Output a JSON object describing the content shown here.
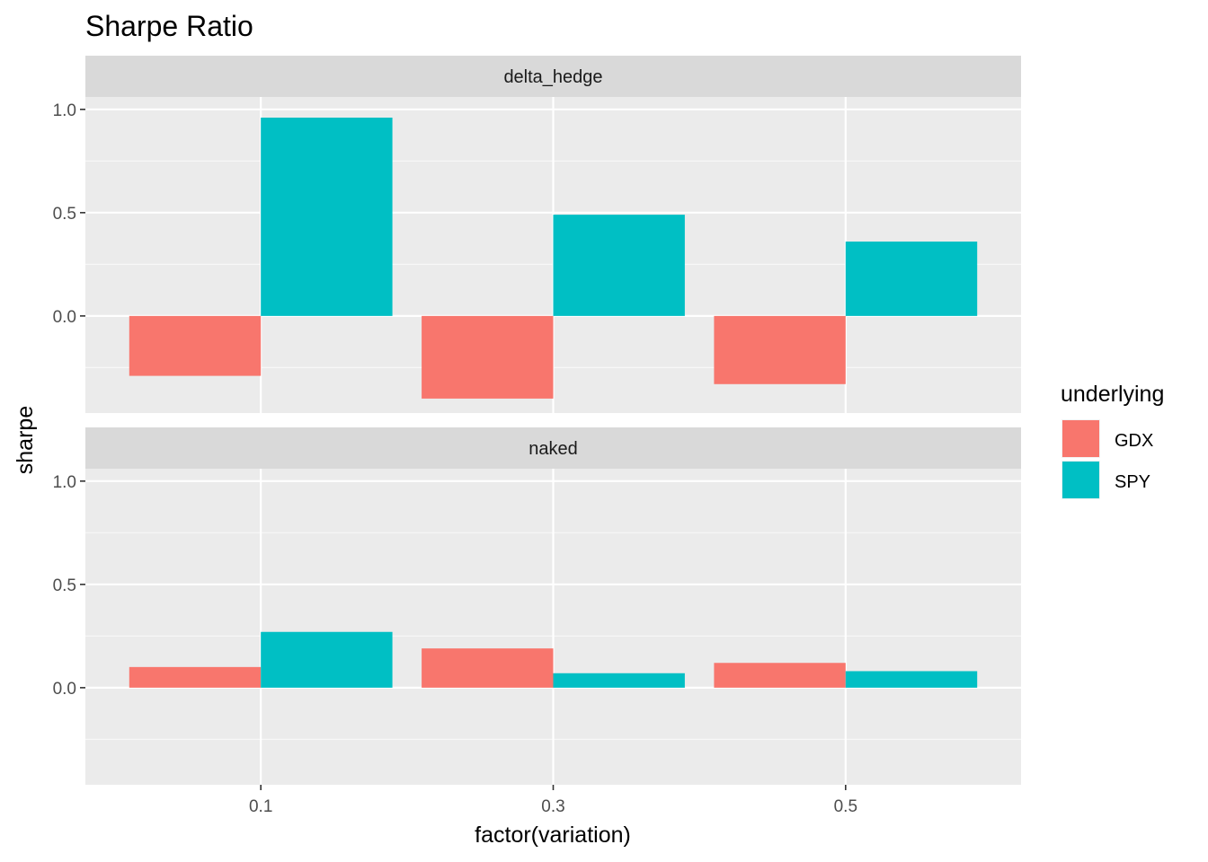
{
  "chart_data": {
    "type": "bar",
    "title": "Sharpe Ratio",
    "xlabel": "factor(variation)",
    "ylabel": "sharpe",
    "categories": [
      "0.1",
      "0.3",
      "0.5"
    ],
    "yticks": [
      "0.0",
      "0.5",
      "1.0"
    ],
    "ylim": [
      -0.47,
      1.06
    ],
    "legend": {
      "title": "underlying",
      "placement": "right"
    },
    "colors": {
      "GDX": "#F8766D",
      "SPY": "#00BFC4"
    },
    "panels": [
      {
        "label": "delta_hedge",
        "series": [
          {
            "name": "GDX",
            "values": [
              -0.29,
              -0.4,
              -0.33
            ]
          },
          {
            "name": "SPY",
            "values": [
              0.96,
              0.49,
              0.36
            ]
          }
        ]
      },
      {
        "label": "naked",
        "series": [
          {
            "name": "GDX",
            "values": [
              0.1,
              0.19,
              0.12
            ]
          },
          {
            "name": "SPY",
            "values": [
              0.27,
              0.07,
              0.08
            ]
          }
        ]
      }
    ]
  }
}
